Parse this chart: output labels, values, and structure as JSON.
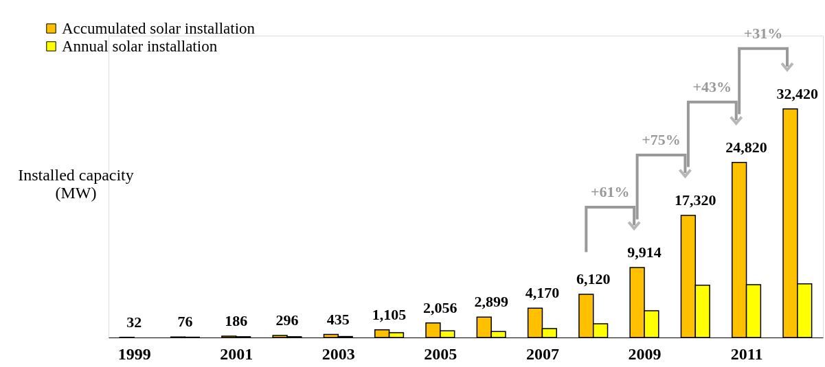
{
  "chart_data": {
    "type": "bar",
    "ylabel": "Installed capacity\n(MW)",
    "categories": [
      "1999",
      null,
      "2001",
      null,
      "2003",
      null,
      "2005",
      null,
      "2007",
      null,
      "2009",
      null,
      "2011",
      null
    ],
    "series": [
      {
        "name": "Accumulated solar installation",
        "color": "#ffc000",
        "values": [
          32,
          76,
          186,
          296,
          435,
          1105,
          2056,
          2899,
          4170,
          6120,
          9914,
          17320,
          24820,
          32420
        ],
        "value_labels": [
          "32",
          "76",
          "186",
          "296",
          "435",
          "1,105",
          "2,056",
          "2,899",
          "4,170",
          "6,120",
          "9,914",
          "17,320",
          "24,820",
          "32,420"
        ]
      },
      {
        "name": "Annual solar installation",
        "color": "#ffff00",
        "values": [
          null,
          44,
          110,
          110,
          139,
          670,
          951,
          843,
          1271,
          1950,
          3794,
          7406,
          7500,
          7600
        ]
      }
    ],
    "annotations": [
      {
        "text": "+61%"
      },
      {
        "text": "+75%"
      },
      {
        "text": "+43%"
      },
      {
        "text": "+31%"
      }
    ],
    "legend": "top left",
    "grid": false
  }
}
